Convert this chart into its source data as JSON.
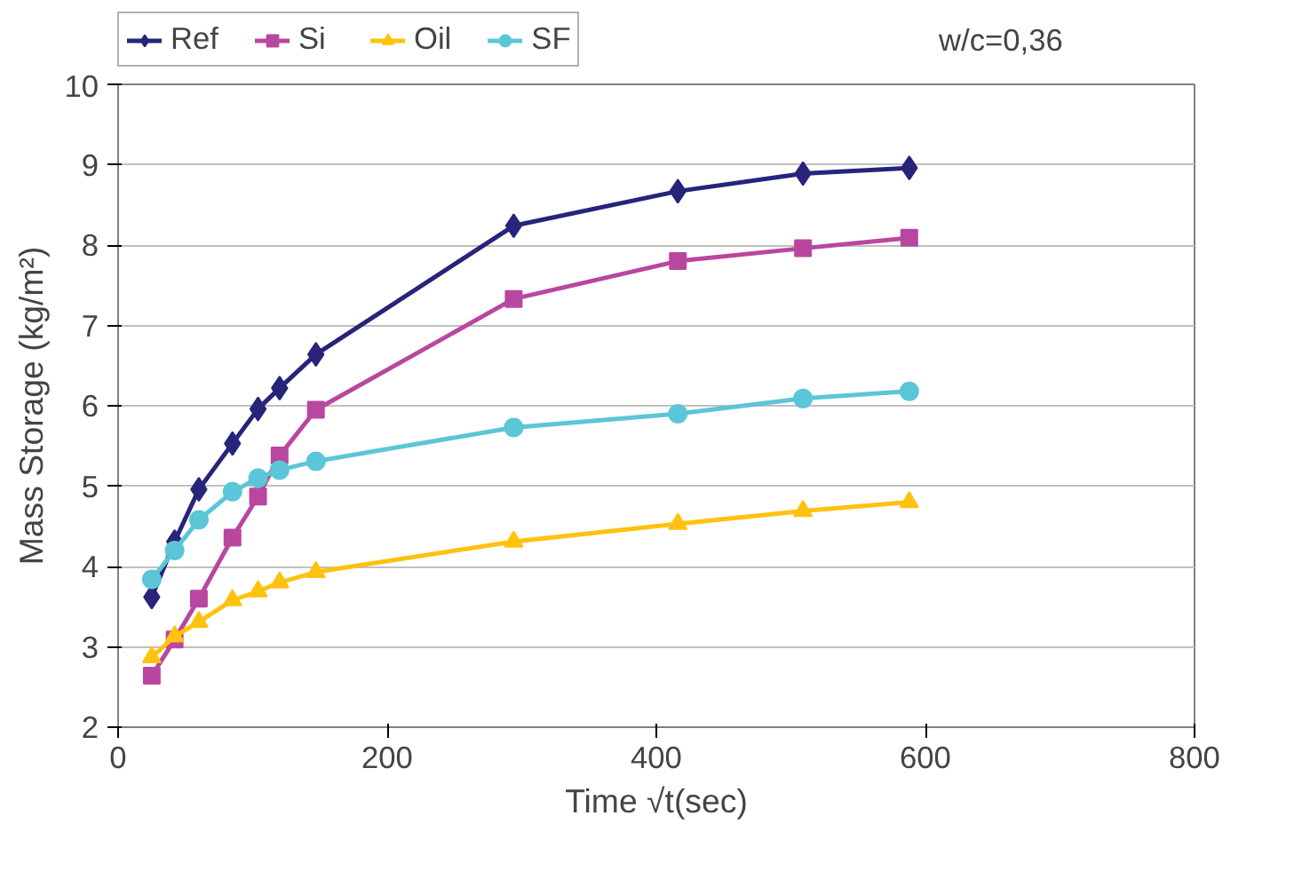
{
  "chart_data": {
    "type": "line",
    "xlabel": "Time √t(sec)",
    "ylabel": "Mass Storage (kg/m²)",
    "x": [
      25,
      42,
      60,
      85,
      104,
      120,
      147,
      294,
      416,
      509,
      588
    ],
    "xlim": [
      0,
      800
    ],
    "xticks": [
      0,
      200,
      400,
      600,
      800
    ],
    "ylim": [
      2,
      10
    ],
    "yticks": [
      2,
      3,
      4,
      5,
      6,
      7,
      8,
      9,
      10
    ],
    "grid": "y",
    "legend": "top left",
    "line_style": "solid",
    "annotations": [
      "w/c=0,36"
    ],
    "series": [
      {
        "name": "Ref",
        "color": "#27247a",
        "marker": "diamond",
        "values": [
          3.62,
          4.31,
          4.96,
          5.53,
          5.96,
          6.22,
          6.64,
          8.24,
          8.67,
          8.89,
          8.96
        ]
      },
      {
        "name": "Si",
        "color": "#b9479f",
        "marker": "square",
        "values": [
          2.64,
          3.09,
          3.6,
          4.36,
          4.87,
          5.38,
          5.95,
          7.33,
          7.8,
          7.96,
          8.09
        ]
      },
      {
        "name": "Oil",
        "color": "#ffc20e",
        "marker": "triangle",
        "values": [
          2.87,
          3.13,
          3.31,
          3.58,
          3.69,
          3.8,
          3.93,
          4.31,
          4.53,
          4.69,
          4.8
        ]
      },
      {
        "name": "SF",
        "color": "#5bc6d8",
        "marker": "circle",
        "values": [
          3.84,
          4.2,
          4.58,
          4.93,
          5.1,
          5.2,
          5.31,
          5.73,
          5.9,
          6.09,
          6.18
        ]
      }
    ]
  }
}
